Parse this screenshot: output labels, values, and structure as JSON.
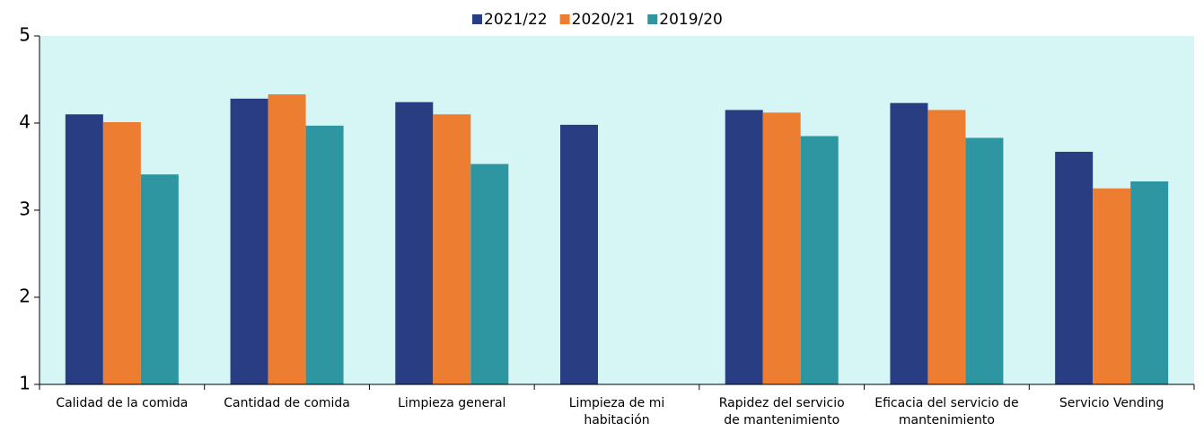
{
  "chart_data": {
    "type": "bar",
    "categories": [
      "Calidad de la comida",
      "Cantidad de comida",
      "Limpieza general",
      "Limpieza de mi\nhabitación",
      "Rapidez del servicio\nde mantenimiento",
      "Eficacia del servicio de\nmantenimiento",
      "Servicio Vending"
    ],
    "series": [
      {
        "name": "2021/22",
        "color": "#283d82",
        "values": [
          4.1,
          4.28,
          4.24,
          3.98,
          4.15,
          4.23,
          3.67
        ]
      },
      {
        "name": "2020/21",
        "color": "#ed7d31",
        "values": [
          4.01,
          4.33,
          4.1,
          null,
          4.12,
          4.15,
          3.25
        ]
      },
      {
        "name": "2019/20",
        "color": "#2e96a0",
        "values": [
          3.41,
          3.97,
          3.53,
          null,
          3.85,
          3.83,
          3.33
        ]
      }
    ],
    "ylim": [
      1,
      5
    ],
    "yticks": [
      1,
      2,
      3,
      4,
      5
    ],
    "grid": false,
    "legend": "top",
    "background": "#d5f6f4"
  }
}
